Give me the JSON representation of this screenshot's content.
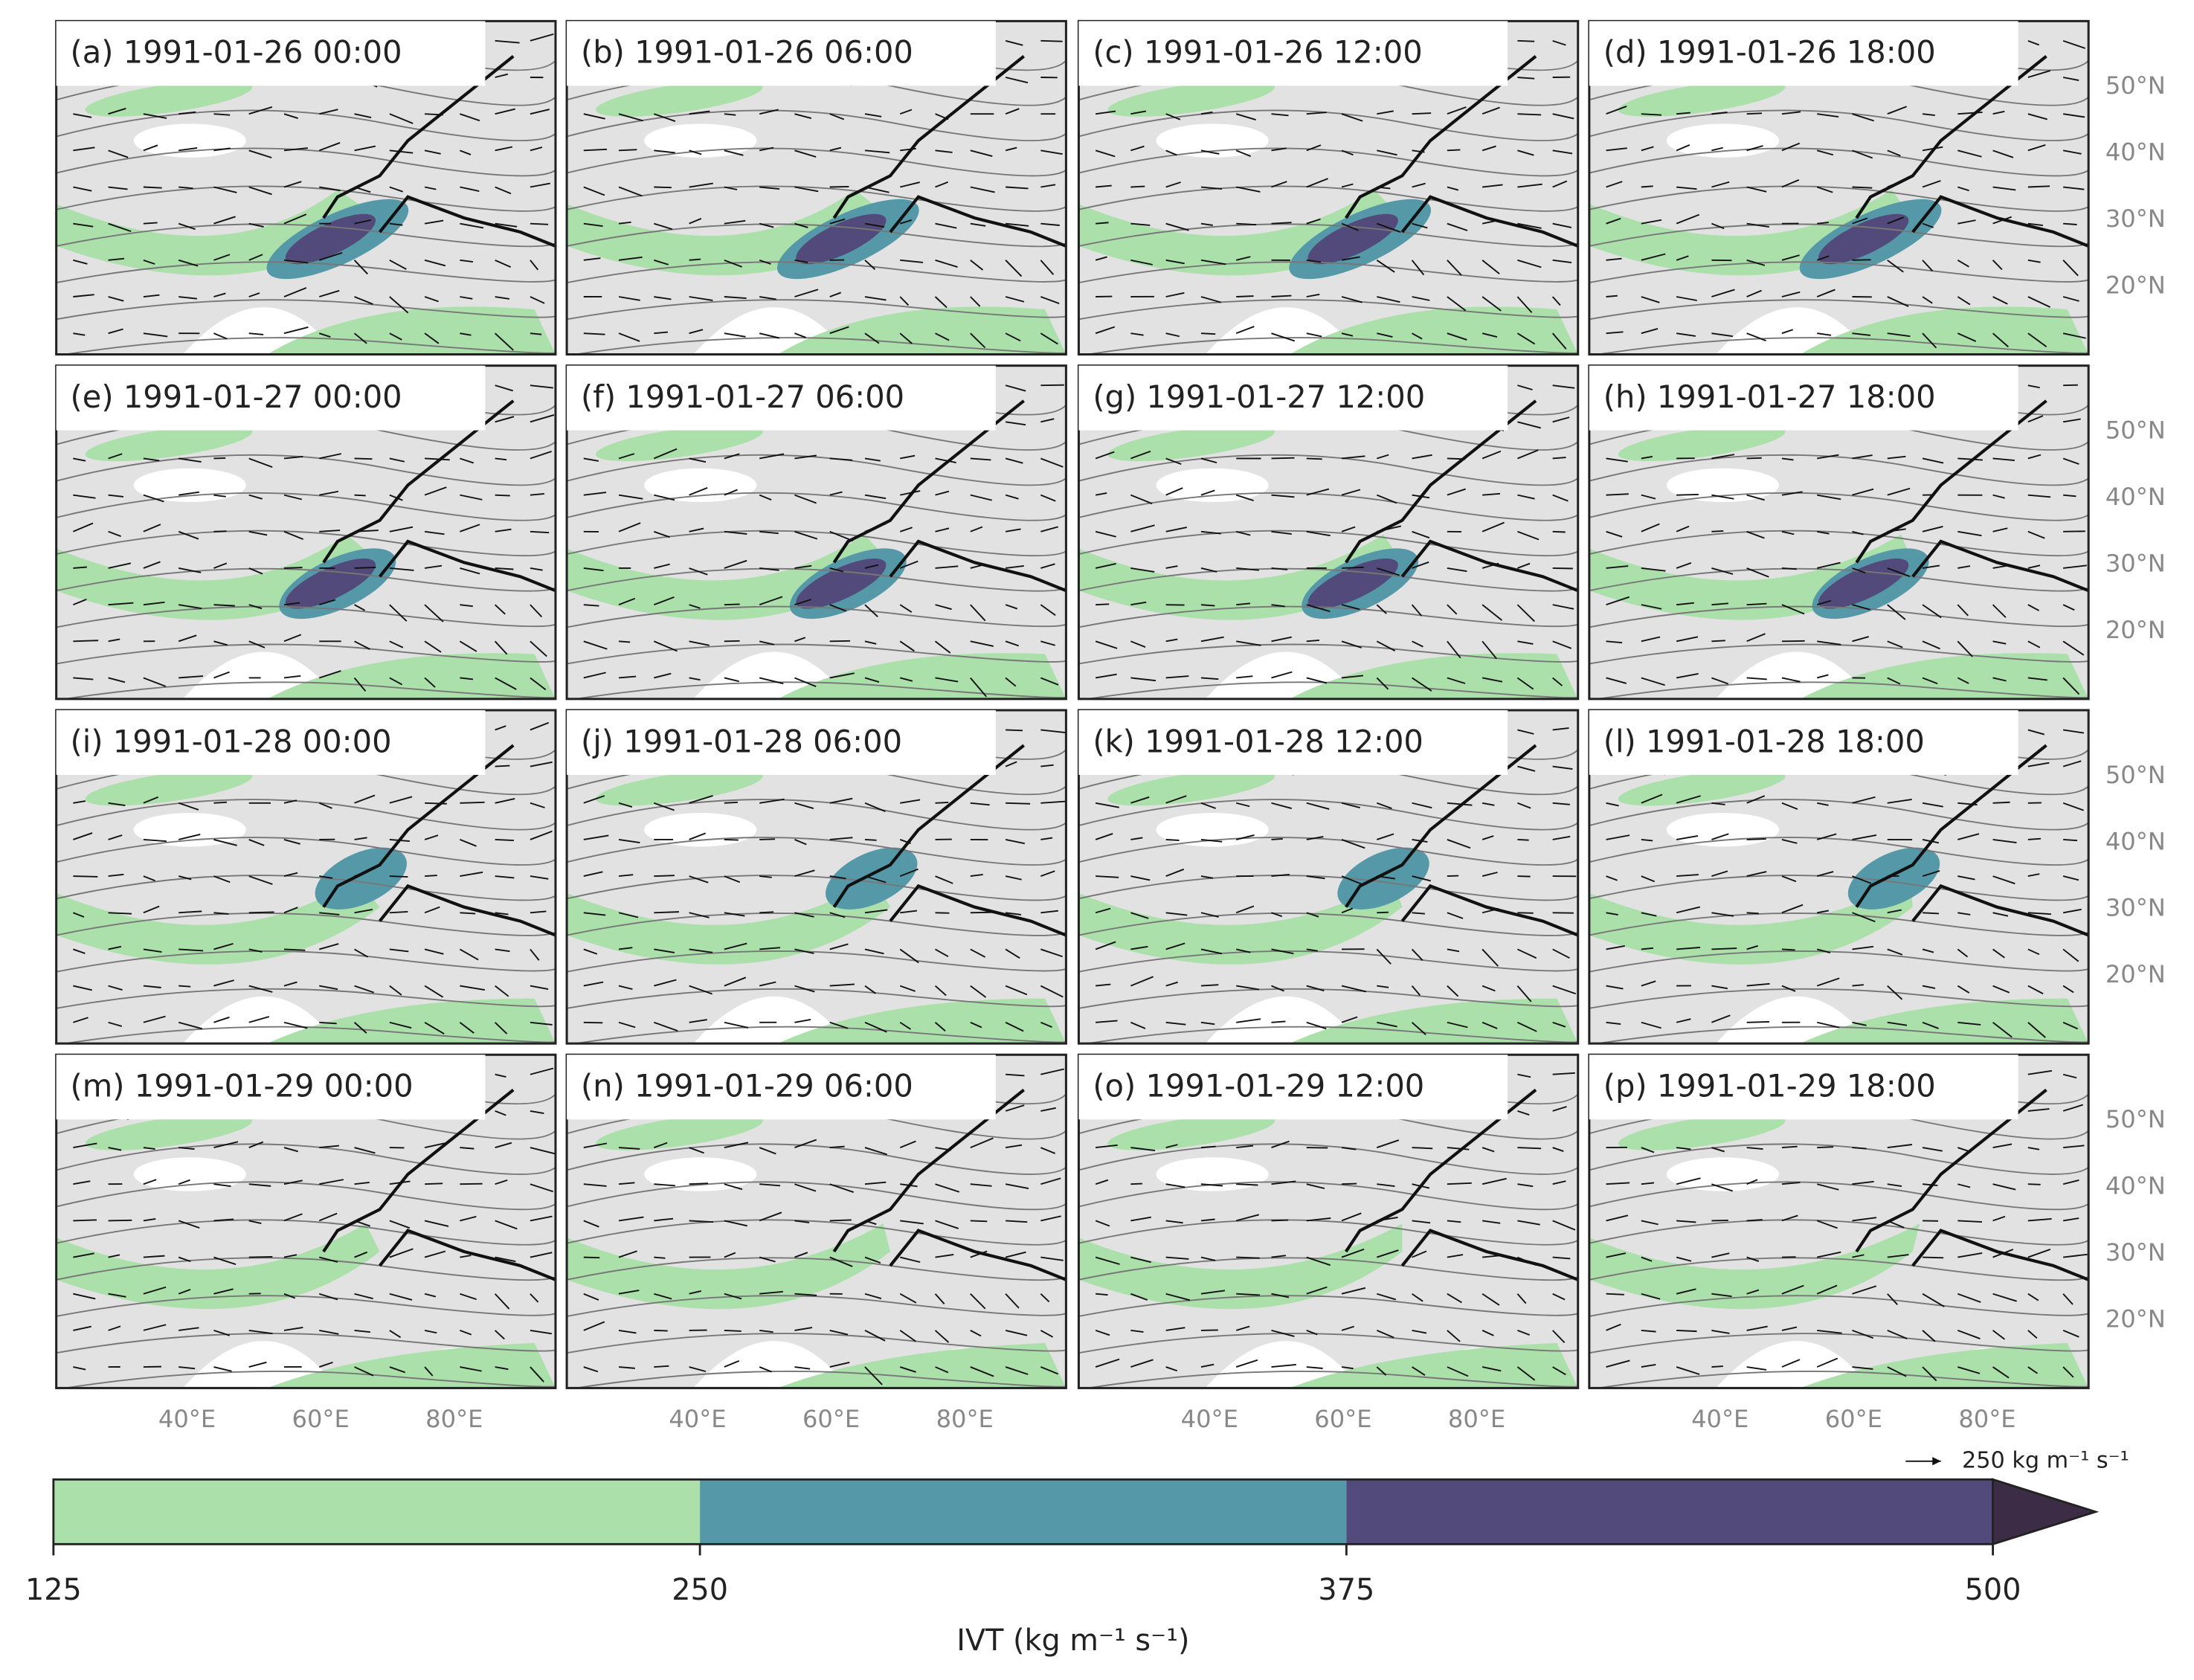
{
  "panels": [
    {
      "label": "(a) 1991-01-26 00:00"
    },
    {
      "label": "(b) 1991-01-26 06:00"
    },
    {
      "label": "(c) 1991-01-26 12:00"
    },
    {
      "label": "(d) 1991-01-26 18:00"
    },
    {
      "label": "(e) 1991-01-27 00:00"
    },
    {
      "label": "(f) 1991-01-27 06:00"
    },
    {
      "label": "(g) 1991-01-27 12:00"
    },
    {
      "label": "(h) 1991-01-27 18:00"
    },
    {
      "label": "(i) 1991-01-28 00:00"
    },
    {
      "label": "(j) 1991-01-28 06:00"
    },
    {
      "label": "(k) 1991-01-28 12:00"
    },
    {
      "label": "(l) 1991-01-28 18:00"
    },
    {
      "label": "(m) 1991-01-29 00:00"
    },
    {
      "label": "(n) 1991-01-29 06:00"
    },
    {
      "label": "(o) 1991-01-29 12:00"
    },
    {
      "label": "(p) 1991-01-29 18:00"
    }
  ],
  "latitude_labels": [
    "50°N",
    "40°N",
    "30°N",
    "20°N"
  ],
  "longitude_labels": [
    "40°E",
    "60°E",
    "80°E"
  ],
  "colorbar": {
    "label": "IVT (kg m⁻¹ s⁻¹)",
    "ticks": [
      125,
      250,
      375,
      500
    ],
    "colors": [
      "#abe0aa",
      "#5599a8",
      "#524a7a",
      "#3d2c45"
    ]
  },
  "quiver_key": "250 kg m⁻¹ s⁻¹"
}
